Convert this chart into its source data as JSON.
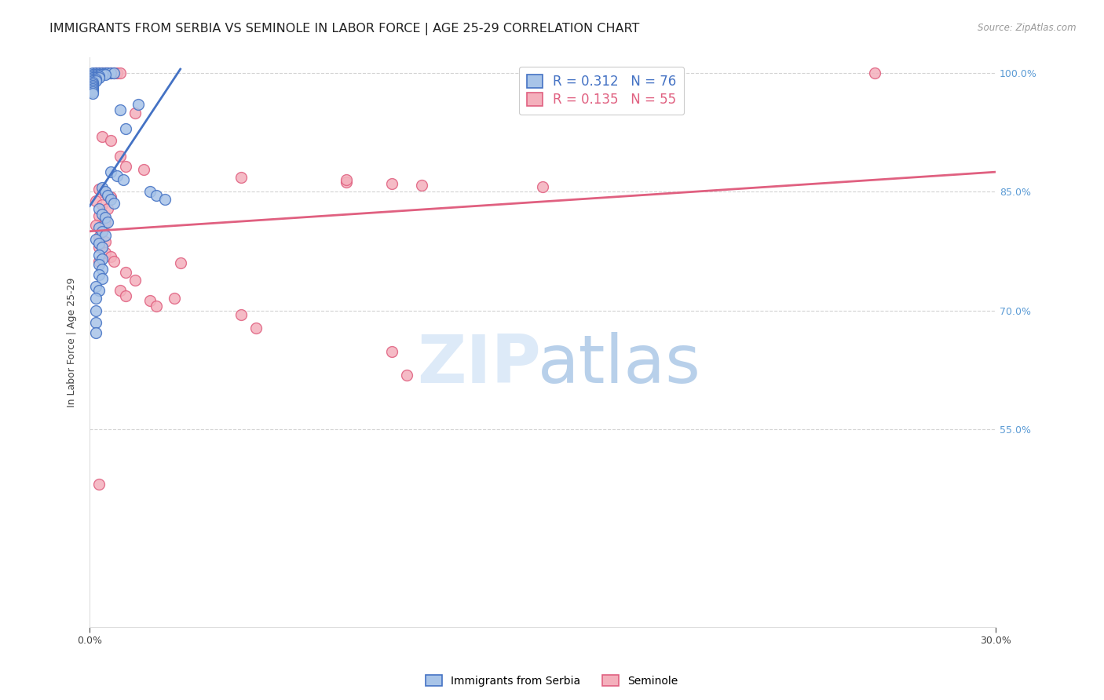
{
  "title": "IMMIGRANTS FROM SERBIA VS SEMINOLE IN LABOR FORCE | AGE 25-29 CORRELATION CHART",
  "source": "Source: ZipAtlas.com",
  "ylabel": "In Labor Force | Age 25-29",
  "xlim": [
    0.0,
    0.3
  ],
  "ylim": [
    0.3,
    1.02
  ],
  "yticks": [
    0.55,
    0.7,
    0.85,
    1.0
  ],
  "ytick_labels": [
    "55.0%",
    "70.0%",
    "85.0%",
    "100.0%"
  ],
  "xticks": [
    0.0,
    0.3
  ],
  "xtick_labels": [
    "0.0%",
    "30.0%"
  ],
  "blue_scatter": [
    [
      0.001,
      1.0
    ],
    [
      0.002,
      1.0
    ],
    [
      0.003,
      1.0
    ],
    [
      0.004,
      1.0
    ],
    [
      0.005,
      1.0
    ],
    [
      0.006,
      1.0
    ],
    [
      0.007,
      1.0
    ],
    [
      0.008,
      1.0
    ],
    [
      0.001,
      0.998
    ],
    [
      0.002,
      0.998
    ],
    [
      0.003,
      0.998
    ],
    [
      0.004,
      0.998
    ],
    [
      0.005,
      0.998
    ],
    [
      0.001,
      0.996
    ],
    [
      0.002,
      0.996
    ],
    [
      0.003,
      0.996
    ],
    [
      0.001,
      0.994
    ],
    [
      0.002,
      0.994
    ],
    [
      0.003,
      0.994
    ],
    [
      0.001,
      0.992
    ],
    [
      0.002,
      0.992
    ],
    [
      0.001,
      0.99
    ],
    [
      0.002,
      0.99
    ],
    [
      0.001,
      0.988
    ],
    [
      0.001,
      0.986
    ],
    [
      0.001,
      0.984
    ],
    [
      0.001,
      0.982
    ],
    [
      0.001,
      0.98
    ],
    [
      0.001,
      0.978
    ],
    [
      0.001,
      0.976
    ],
    [
      0.001,
      0.974
    ],
    [
      0.01,
      0.954
    ],
    [
      0.012,
      0.93
    ],
    [
      0.007,
      0.875
    ],
    [
      0.009,
      0.87
    ],
    [
      0.011,
      0.865
    ],
    [
      0.016,
      0.96
    ],
    [
      0.004,
      0.855
    ],
    [
      0.005,
      0.85
    ],
    [
      0.006,
      0.845
    ],
    [
      0.007,
      0.84
    ],
    [
      0.008,
      0.835
    ],
    [
      0.003,
      0.828
    ],
    [
      0.004,
      0.822
    ],
    [
      0.005,
      0.818
    ],
    [
      0.006,
      0.812
    ],
    [
      0.003,
      0.805
    ],
    [
      0.004,
      0.8
    ],
    [
      0.005,
      0.795
    ],
    [
      0.02,
      0.85
    ],
    [
      0.022,
      0.845
    ],
    [
      0.025,
      0.84
    ],
    [
      0.002,
      0.79
    ],
    [
      0.003,
      0.785
    ],
    [
      0.004,
      0.78
    ],
    [
      0.003,
      0.77
    ],
    [
      0.004,
      0.765
    ],
    [
      0.003,
      0.758
    ],
    [
      0.004,
      0.752
    ],
    [
      0.003,
      0.745
    ],
    [
      0.004,
      0.74
    ],
    [
      0.002,
      0.73
    ],
    [
      0.003,
      0.725
    ],
    [
      0.002,
      0.715
    ],
    [
      0.002,
      0.7
    ],
    [
      0.002,
      0.685
    ],
    [
      0.002,
      0.672
    ]
  ],
  "pink_scatter": [
    [
      0.002,
      1.0
    ],
    [
      0.003,
      1.0
    ],
    [
      0.004,
      1.0
    ],
    [
      0.005,
      1.0
    ],
    [
      0.006,
      1.0
    ],
    [
      0.007,
      1.0
    ],
    [
      0.008,
      1.0
    ],
    [
      0.009,
      1.0
    ],
    [
      0.01,
      1.0
    ],
    [
      0.26,
      1.0
    ],
    [
      0.015,
      0.95
    ],
    [
      0.004,
      0.92
    ],
    [
      0.007,
      0.915
    ],
    [
      0.01,
      0.895
    ],
    [
      0.012,
      0.882
    ],
    [
      0.018,
      0.878
    ],
    [
      0.05,
      0.868
    ],
    [
      0.085,
      0.862
    ],
    [
      0.1,
      0.86
    ],
    [
      0.11,
      0.858
    ],
    [
      0.15,
      0.856
    ],
    [
      0.003,
      0.853
    ],
    [
      0.005,
      0.848
    ],
    [
      0.007,
      0.843
    ],
    [
      0.002,
      0.838
    ],
    [
      0.004,
      0.833
    ],
    [
      0.006,
      0.828
    ],
    [
      0.003,
      0.82
    ],
    [
      0.005,
      0.815
    ],
    [
      0.002,
      0.808
    ],
    [
      0.004,
      0.8
    ],
    [
      0.003,
      0.793
    ],
    [
      0.005,
      0.787
    ],
    [
      0.003,
      0.78
    ],
    [
      0.005,
      0.773
    ],
    [
      0.007,
      0.768
    ],
    [
      0.03,
      0.76
    ],
    [
      0.012,
      0.748
    ],
    [
      0.015,
      0.738
    ],
    [
      0.01,
      0.725
    ],
    [
      0.012,
      0.718
    ],
    [
      0.02,
      0.712
    ],
    [
      0.022,
      0.705
    ],
    [
      0.028,
      0.715
    ],
    [
      0.05,
      0.695
    ],
    [
      0.055,
      0.678
    ],
    [
      0.1,
      0.648
    ],
    [
      0.105,
      0.618
    ],
    [
      0.085,
      0.865
    ],
    [
      0.005,
      0.81
    ],
    [
      0.008,
      0.762
    ],
    [
      0.003,
      0.762
    ],
    [
      0.003,
      0.48
    ]
  ],
  "blue_line": {
    "x0": 0.0,
    "y0": 0.832,
    "x1": 0.03,
    "y1": 1.005
  },
  "pink_line": {
    "x0": 0.0,
    "y0": 0.8,
    "x1": 0.3,
    "y1": 0.875
  },
  "blue_color": "#4472c4",
  "pink_color": "#e06080",
  "blue_fill": "#a8c4e8",
  "pink_fill": "#f4b0bc",
  "watermark_zip_color": "#ddeaf8",
  "watermark_atlas_color": "#b8d0ea",
  "background_color": "#ffffff",
  "grid_color": "#c8c8c8",
  "title_fontsize": 11.5,
  "axis_label_fontsize": 9,
  "tick_fontsize": 9,
  "legend_fontsize": 12,
  "right_tick_color": "#5b9bd5"
}
